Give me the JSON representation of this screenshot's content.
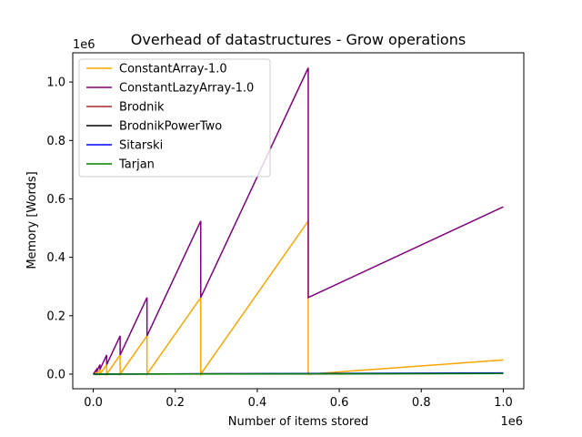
{
  "chart_data": {
    "type": "line",
    "title": "Overhead of datastructures - Grow operations",
    "xlabel": "Number of items stored",
    "ylabel": "Memory [Words]",
    "x_offset_label": "1e6",
    "y_offset_label": "1e6",
    "xlim": [
      -50000,
      1050000
    ],
    "ylim": [
      -50000,
      1100000
    ],
    "xticks": [
      0,
      200000,
      400000,
      600000,
      800000,
      1000000
    ],
    "xtick_labels": [
      "0.0",
      "0.2",
      "0.4",
      "0.6",
      "0.8",
      "1.0"
    ],
    "yticks": [
      0,
      200000,
      400000,
      600000,
      800000,
      1000000
    ],
    "ytick_labels": [
      "0.0",
      "0.2",
      "0.4",
      "0.6",
      "0.8",
      "1.0"
    ],
    "grid": false,
    "legend_position": "top-left",
    "series": [
      {
        "name": "ConstantArray-1.0",
        "color": "#ffa500",
        "x": [
          0,
          8192,
          8192,
          16384,
          16384,
          32768,
          32768,
          65536,
          65536,
          131072,
          131072,
          262144,
          262144,
          524288,
          524288,
          1000000
        ],
        "y": [
          0,
          8192,
          0,
          16384,
          0,
          32768,
          0,
          65536,
          0,
          131072,
          0,
          262144,
          0,
          524288,
          0,
          48576
        ]
      },
      {
        "name": "ConstantLazyArray-1.0",
        "color": "#800080",
        "x": [
          0,
          8192,
          8192,
          16384,
          16384,
          32768,
          32768,
          65536,
          65536,
          131072,
          131072,
          262144,
          262144,
          524288,
          524288,
          1000000
        ],
        "y": [
          0,
          16384,
          8192,
          32768,
          16384,
          65536,
          32768,
          131072,
          65536,
          262144,
          131072,
          524288,
          262144,
          1048576,
          262144,
          572864
        ]
      },
      {
        "name": "Brodnik",
        "color": "#a52a2a",
        "x": [
          0,
          1000000
        ],
        "y": [
          0,
          3000
        ]
      },
      {
        "name": "BrodnikPowerTwo",
        "color": "#000000",
        "x": [
          0,
          1000000
        ],
        "y": [
          0,
          2500
        ]
      },
      {
        "name": "Sitarski",
        "color": "#0000ff",
        "x": [
          0,
          1000000
        ],
        "y": [
          0,
          4000
        ]
      },
      {
        "name": "Tarjan",
        "color": "#008000",
        "x": [
          0,
          1000000
        ],
        "y": [
          0,
          2000
        ]
      }
    ]
  }
}
